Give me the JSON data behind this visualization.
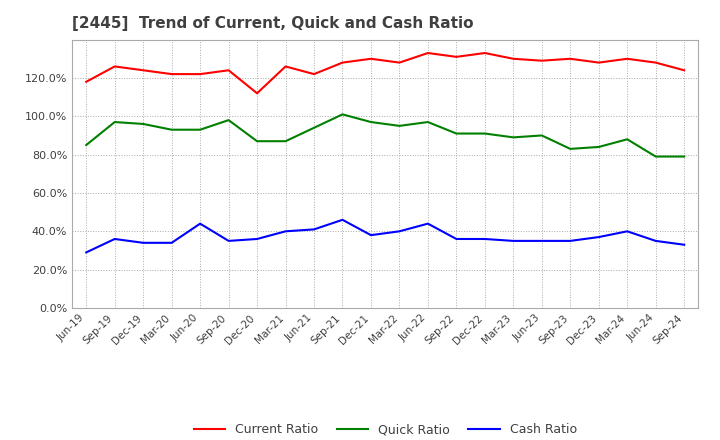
{
  "title": "[2445]  Trend of Current, Quick and Cash Ratio",
  "x_labels": [
    "Jun-19",
    "Sep-19",
    "Dec-19",
    "Mar-20",
    "Jun-20",
    "Sep-20",
    "Dec-20",
    "Mar-21",
    "Jun-21",
    "Sep-21",
    "Dec-21",
    "Mar-22",
    "Jun-22",
    "Sep-22",
    "Dec-22",
    "Mar-23",
    "Jun-23",
    "Sep-23",
    "Dec-23",
    "Mar-24",
    "Jun-24",
    "Sep-24"
  ],
  "current_ratio": [
    118.0,
    126.0,
    124.0,
    122.0,
    122.0,
    124.0,
    112.0,
    126.0,
    122.0,
    128.0,
    130.0,
    128.0,
    133.0,
    131.0,
    133.0,
    130.0,
    129.0,
    130.0,
    128.0,
    130.0,
    128.0,
    124.0
  ],
  "quick_ratio": [
    85.0,
    97.0,
    96.0,
    93.0,
    93.0,
    98.0,
    87.0,
    87.0,
    94.0,
    101.0,
    97.0,
    95.0,
    97.0,
    91.0,
    91.0,
    89.0,
    90.0,
    83.0,
    84.0,
    88.0,
    79.0,
    79.0
  ],
  "cash_ratio": [
    29.0,
    36.0,
    34.0,
    34.0,
    44.0,
    35.0,
    36.0,
    40.0,
    41.0,
    46.0,
    38.0,
    40.0,
    44.0,
    36.0,
    36.0,
    35.0,
    35.0,
    35.0,
    37.0,
    40.0,
    35.0,
    33.0
  ],
  "ylim": [
    0.0,
    140.0
  ],
  "yticks": [
    0.0,
    20.0,
    40.0,
    60.0,
    80.0,
    100.0,
    120.0
  ],
  "current_color": "#ff0000",
  "quick_color": "#008000",
  "cash_color": "#0000ff",
  "bg_color": "#ffffff",
  "plot_bg_color": "#ffffff",
  "grid_color": "#aaaaaa",
  "title_color": "#404040",
  "legend_labels": [
    "Current Ratio",
    "Quick Ratio",
    "Cash Ratio"
  ]
}
